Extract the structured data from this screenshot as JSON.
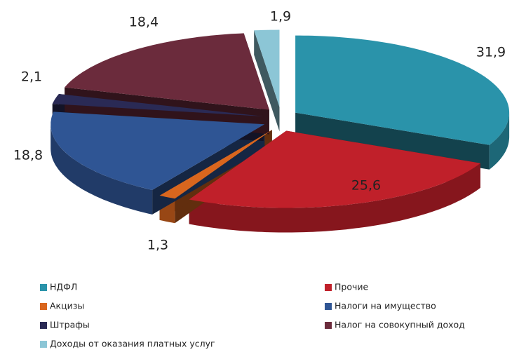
{
  "chart_data": {
    "type": "pie",
    "categories": [
      "НДФЛ",
      "Прочие",
      "Акцизы",
      "Налоги на имущество",
      "Штрафы",
      "Налог на совокупный доход",
      "Доходы от оказания платных услуг"
    ],
    "values": [
      31.9,
      25.6,
      1.3,
      18.8,
      2.1,
      18.4,
      1.9
    ],
    "value_labels": [
      "31,9",
      "25,6",
      "1,3",
      "18,8",
      "2,1",
      "18,4",
      "1,9"
    ],
    "colors": [
      "#2a93aa",
      "#c0202a",
      "#d9661e",
      "#2f5594",
      "#2a2a55",
      "#6b2b3c",
      "#8cc6d6"
    ],
    "legend": "bottom"
  }
}
